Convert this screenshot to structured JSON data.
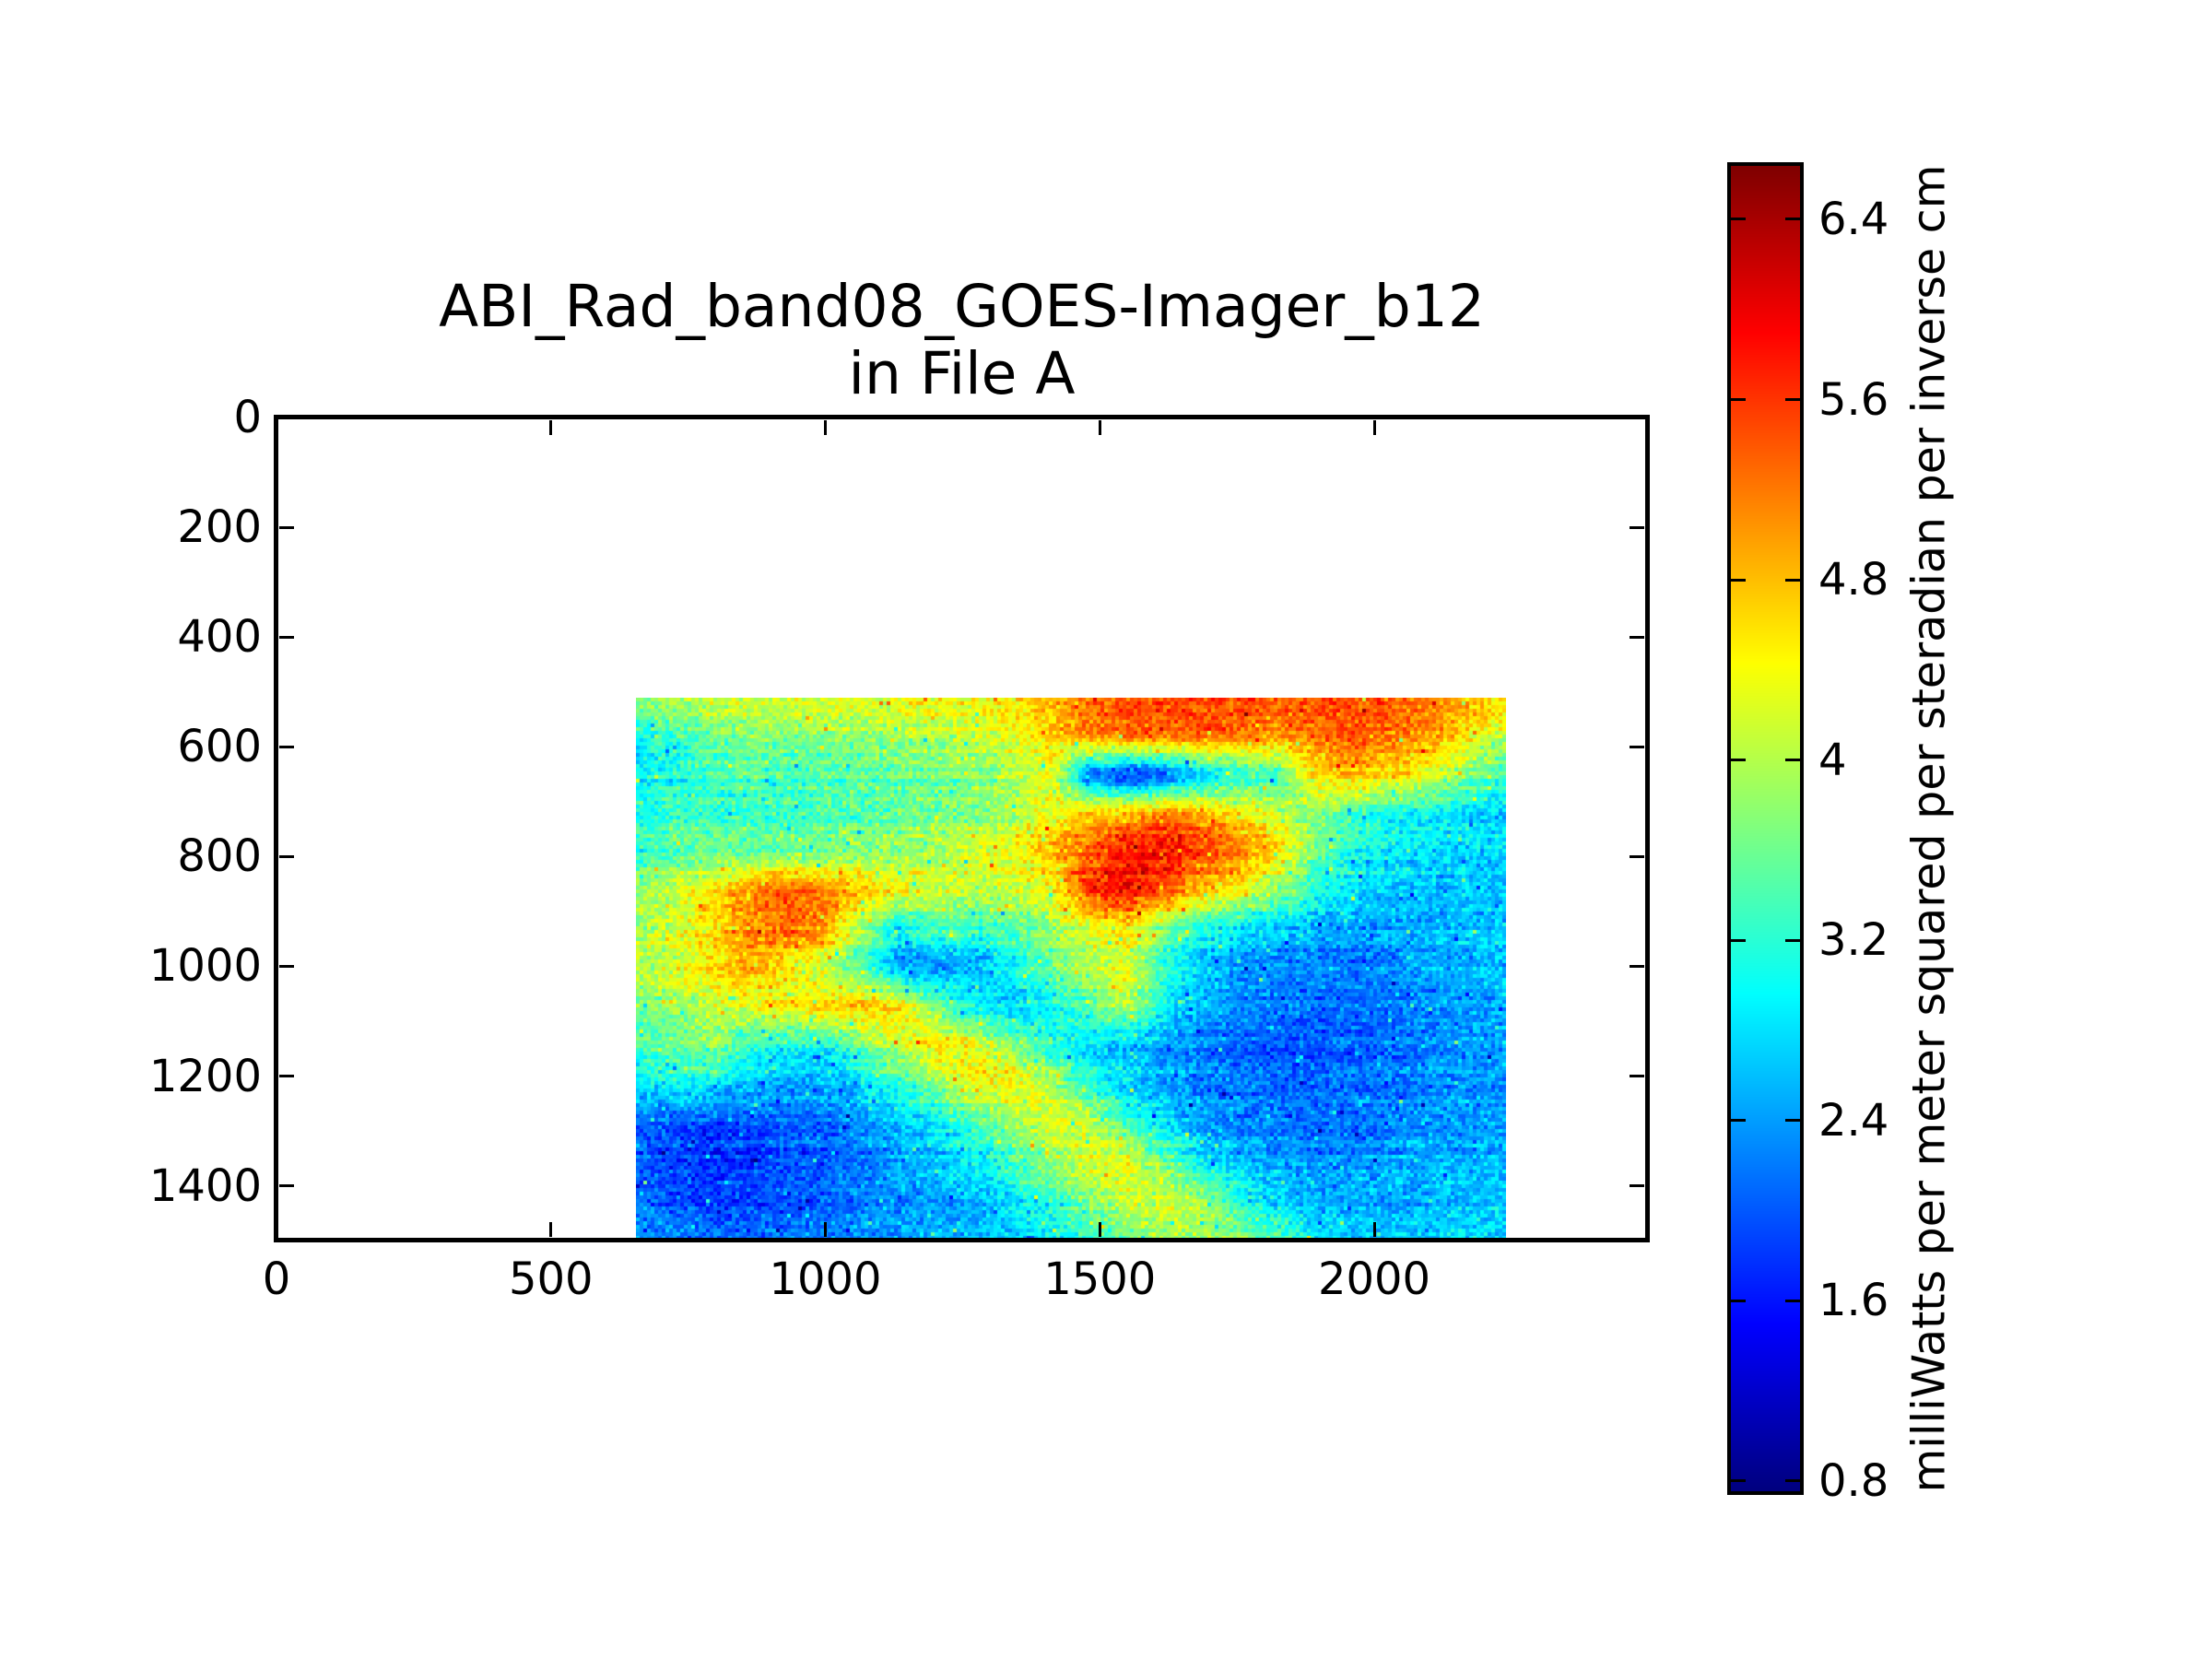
{
  "title": {
    "line1": "ABI_Rad_band08_GOES-Imager_b12",
    "line2": "in File A"
  },
  "chart_data": {
    "type": "heatmap",
    "title": "ABI_Rad_band08_GOES-Imager_b12 in File A",
    "xlabel": "",
    "ylabel": "",
    "grid": false,
    "xlim": [
      0,
      2497
    ],
    "ylim": [
      1498,
      0
    ],
    "x_tick_labels": [
      "0",
      "500",
      "1000",
      "1500",
      "2000"
    ],
    "x_tick_values": [
      0,
      500,
      1000,
      1500,
      2000
    ],
    "y_tick_labels": [
      "0",
      "200",
      "400",
      "600",
      "800",
      "1000",
      "1200",
      "1400"
    ],
    "y_tick_values": [
      0,
      200,
      400,
      600,
      800,
      1000,
      1200,
      1400
    ],
    "colormap": "jet",
    "colorbar": {
      "label": "milliWatts per meter squared per steradian per inverse cm",
      "tick_labels": [
        "6.4",
        "5.6",
        "4.8",
        "4",
        "3.2",
        "2.4",
        "1.6",
        "0.8"
      ],
      "tick_values": [
        6.4,
        5.6,
        4.8,
        4,
        3.2,
        2.4,
        1.6,
        0.8
      ],
      "vmin": 0.755,
      "vmax": 6.637
    },
    "image_extent": {
      "x0": 655,
      "x1": 2240,
      "y0": 510,
      "y1": 1498
    },
    "values_grid": {
      "cols": 24,
      "rows": 15,
      "units": "mW m-2 sr-1 (cm-1)-1",
      "values": [
        [
          3.8,
          3.9,
          4.1,
          4.2,
          4.2,
          4.3,
          4.2,
          4.3,
          4.4,
          4.4,
          4.5,
          4.8,
          5.2,
          5.4,
          5.5,
          5.4,
          5.5,
          5.3,
          5.4,
          5.5,
          5.3,
          5.2,
          4.9,
          4.6
        ],
        [
          3.0,
          3.3,
          3.6,
          3.7,
          3.7,
          3.8,
          3.8,
          3.9,
          4.0,
          4.1,
          4.3,
          4.7,
          5.1,
          5.3,
          5.2,
          5.4,
          5.2,
          5.0,
          5.3,
          5.4,
          5.2,
          5.0,
          4.5,
          4.1
        ],
        [
          2.9,
          3.1,
          3.3,
          3.4,
          3.3,
          3.4,
          3.5,
          3.5,
          3.6,
          3.7,
          3.9,
          4.3,
          2.1,
          1.7,
          2.0,
          2.6,
          3.1,
          3.3,
          4.6,
          4.8,
          4.6,
          4.3,
          3.7,
          3.3
        ],
        [
          3.2,
          3.4,
          3.4,
          3.3,
          3.4,
          3.5,
          3.5,
          3.6,
          3.7,
          3.8,
          4.0,
          4.4,
          4.8,
          5.0,
          5.2,
          5.0,
          4.6,
          4.2,
          3.8,
          3.4,
          3.1,
          3.0,
          2.9,
          2.8
        ],
        [
          3.3,
          3.5,
          3.6,
          3.6,
          3.6,
          3.7,
          3.8,
          3.9,
          4.0,
          4.2,
          4.4,
          4.8,
          5.4,
          5.9,
          6.0,
          5.6,
          5.2,
          4.6,
          3.6,
          3.1,
          2.9,
          2.8,
          2.8,
          2.7
        ],
        [
          3.8,
          4.1,
          4.6,
          5.2,
          5.4,
          5.2,
          4.8,
          4.4,
          4.2,
          4.1,
          4.2,
          4.4,
          5.6,
          5.9,
          5.4,
          4.7,
          4.4,
          3.8,
          3.2,
          2.9,
          2.7,
          2.6,
          2.7,
          2.6
        ],
        [
          3.9,
          4.1,
          4.5,
          5.0,
          5.3,
          5.0,
          3.8,
          2.8,
          3.4,
          3.2,
          3.4,
          3.8,
          4.2,
          4.4,
          3.6,
          3.0,
          2.8,
          2.6,
          2.5,
          2.4,
          2.4,
          2.5,
          2.6,
          2.7
        ],
        [
          4.0,
          4.2,
          4.6,
          5.0,
          4.4,
          4.0,
          3.4,
          2.4,
          2.3,
          2.5,
          3.0,
          3.6,
          4.0,
          4.3,
          3.2,
          2.6,
          2.4,
          2.3,
          2.2,
          2.2,
          2.3,
          2.4,
          2.5,
          2.6
        ],
        [
          3.6,
          3.8,
          4.0,
          4.2,
          4.4,
          4.6,
          4.8,
          4.6,
          3.6,
          2.9,
          2.7,
          3.0,
          3.4,
          4.0,
          2.9,
          2.5,
          2.3,
          2.2,
          2.1,
          2.1,
          2.2,
          2.3,
          2.4,
          2.5
        ],
        [
          3.4,
          3.6,
          3.8,
          3.3,
          3.1,
          3.0,
          3.6,
          4.2,
          4.6,
          4.4,
          3.8,
          3.2,
          2.8,
          2.6,
          2.4,
          2.2,
          2.1,
          2.0,
          2.0,
          2.1,
          2.2,
          2.3,
          2.4,
          2.5
        ],
        [
          2.8,
          3.0,
          3.0,
          2.6,
          2.4,
          2.5,
          2.8,
          3.2,
          3.8,
          4.4,
          4.5,
          4.0,
          3.2,
          2.8,
          2.5,
          2.3,
          2.2,
          2.1,
          2.1,
          2.1,
          2.2,
          2.3,
          2.4,
          2.4
        ],
        [
          2.2,
          2.0,
          1.9,
          2.0,
          2.1,
          2.2,
          2.4,
          2.7,
          3.0,
          3.4,
          3.9,
          4.4,
          4.2,
          3.4,
          2.8,
          2.5,
          2.3,
          2.2,
          2.2,
          2.2,
          2.3,
          2.4,
          2.4,
          2.5
        ],
        [
          2.0,
          1.8,
          1.7,
          1.8,
          1.9,
          2.0,
          2.2,
          2.4,
          2.6,
          2.9,
          3.3,
          3.8,
          4.2,
          4.3,
          3.6,
          2.9,
          2.6,
          2.4,
          2.3,
          2.4,
          2.4,
          2.5,
          2.5,
          2.6
        ],
        [
          2.2,
          2.0,
          1.9,
          1.9,
          2.0,
          2.1,
          2.3,
          2.4,
          2.5,
          2.6,
          2.9,
          3.3,
          3.8,
          4.1,
          4.2,
          3.9,
          3.2,
          2.8,
          2.5,
          2.5,
          2.5,
          2.6,
          2.6,
          2.7
        ],
        [
          2.4,
          2.3,
          2.2,
          2.1,
          2.2,
          2.3,
          2.4,
          2.5,
          2.5,
          2.6,
          2.7,
          2.9,
          3.2,
          3.6,
          3.9,
          4.0,
          3.8,
          3.4,
          2.9,
          2.7,
          2.7,
          2.7,
          2.8,
          2.8
        ]
      ]
    },
    "noise_amplitude": 0.55
  }
}
